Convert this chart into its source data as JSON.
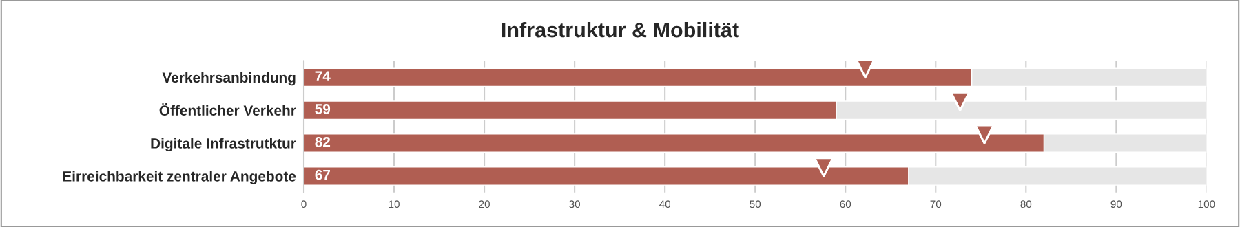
{
  "chart_data": {
    "type": "bar",
    "title": "Infrastruktur & Mobilität",
    "orientation": "horizontal",
    "stacked": true,
    "categories": [
      "Verkehrsanbindung",
      "Öffentlicher Verkehr",
      "Digitale Infrastrutktur",
      "Eirreichbarkeit zentraler Angebote"
    ],
    "series": [
      {
        "color": "#b05e52",
        "values": [
          74,
          59,
          82,
          67
        ],
        "value_labels": [
          "74",
          "59",
          "82",
          "67"
        ]
      },
      {
        "color": "#e6e6e6",
        "values": [
          26,
          41,
          18,
          33
        ]
      },
      {
        "type": "scatter",
        "marker": "triangle",
        "color": "#b05e52",
        "values": [
          62.2,
          72.7,
          75.4,
          57.6
        ]
      }
    ],
    "xlim": [
      0,
      100
    ],
    "xticks": [
      0,
      10,
      20,
      30,
      40,
      50,
      60,
      70,
      80,
      90,
      100
    ],
    "grid": "x",
    "legend": false
  }
}
